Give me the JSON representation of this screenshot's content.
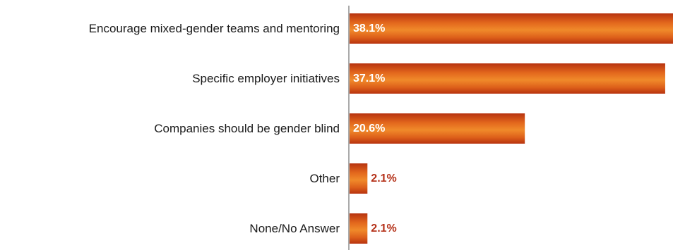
{
  "chart_data": {
    "type": "bar",
    "orientation": "horizontal",
    "categories": [
      "Encourage mixed-gender teams and mentoring",
      "Specific employer initiatives",
      "Companies should be gender blind",
      "Other",
      "None/No Answer"
    ],
    "values": [
      38.1,
      37.1,
      20.6,
      2.1,
      2.1
    ],
    "value_labels": [
      "38.1%",
      "37.1%",
      "20.6%",
      "2.1%",
      "2.1%"
    ],
    "title": "",
    "xlabel": "",
    "ylabel": "",
    "xlim": [
      0,
      38.1
    ],
    "grid": false,
    "legend": "none",
    "colors": {
      "bar_light": "#f08a2a",
      "bar_mid": "#e2661c",
      "bar_dark": "#b7330f",
      "label_inside": "#ffffff",
      "label_outside": "#b5321a",
      "axis": "#555555"
    }
  }
}
